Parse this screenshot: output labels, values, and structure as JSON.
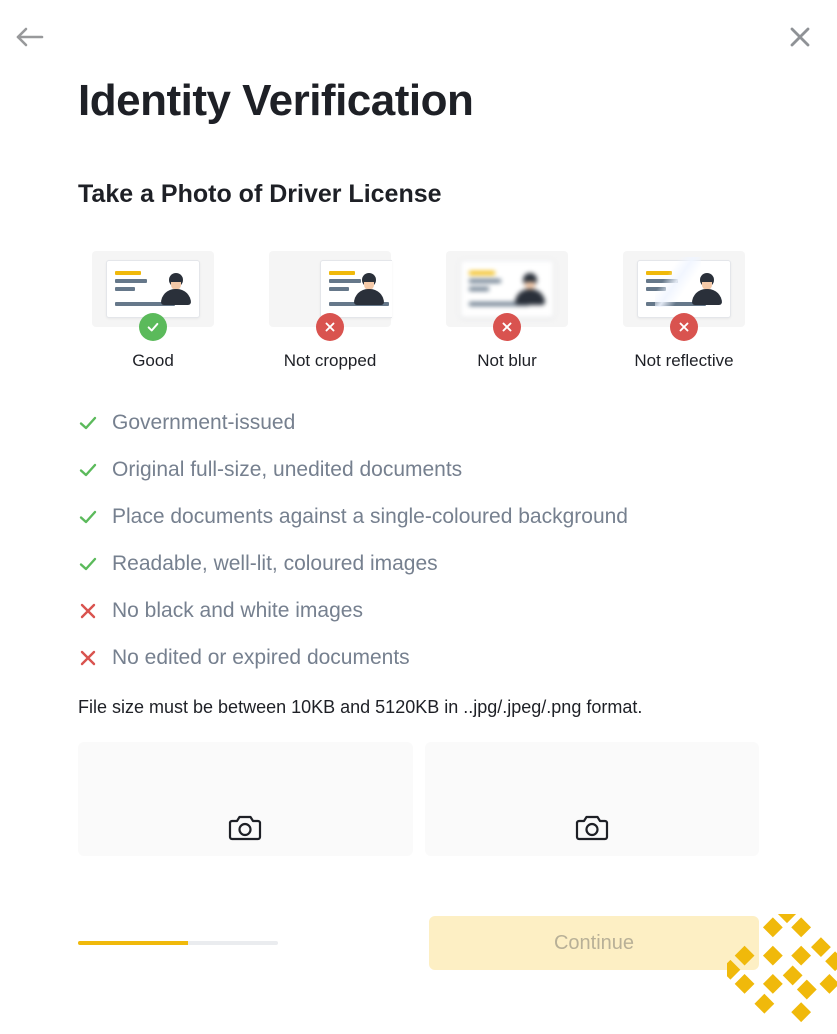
{
  "colors": {
    "accent": "#f0b90b",
    "text_primary": "#1e2026",
    "text_secondary": "#76808f",
    "ok_green": "#5bba5b",
    "bad_red": "#d9534f",
    "icon_gray": "#98999b",
    "bg_box": "#fafafa",
    "continue_bg": "#fdefc4",
    "continue_text": "#b8b097",
    "progress_bg": "#eaecef"
  },
  "header": {
    "title": "Identity Verification",
    "subtitle": "Take a Photo of Driver License"
  },
  "examples": [
    {
      "label": "Good",
      "status": "ok",
      "variant": "normal"
    },
    {
      "label": "Not cropped",
      "status": "bad",
      "variant": "cropped"
    },
    {
      "label": "Not blur",
      "status": "bad",
      "variant": "blur"
    },
    {
      "label": "Not reflective",
      "status": "bad",
      "variant": "reflect"
    }
  ],
  "rules": [
    {
      "type": "ok",
      "text": "Government-issued"
    },
    {
      "type": "ok",
      "text": "Original full-size, unedited documents"
    },
    {
      "type": "ok",
      "text": "Place documents against a single-coloured background"
    },
    {
      "type": "ok",
      "text": "Readable, well-lit, coloured images"
    },
    {
      "type": "bad",
      "text": "No black and white images"
    },
    {
      "type": "bad",
      "text": "No edited or expired documents"
    }
  ],
  "file_note": "File size must be between 10KB and 5120KB in ..jpg/.jpeg/.png format.",
  "progress_percent": 55,
  "continue_label": "Continue"
}
